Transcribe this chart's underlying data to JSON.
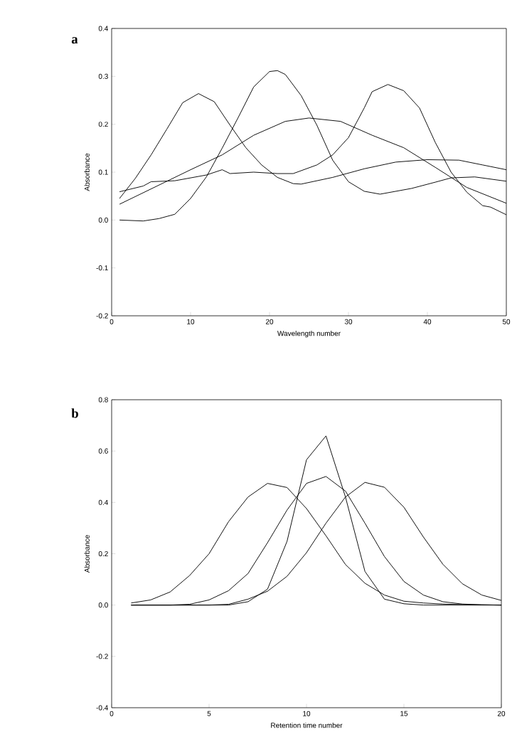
{
  "chart_data": [
    {
      "type": "line",
      "title": "a",
      "xlabel": "Wavelength number",
      "ylabel": "Absorbance",
      "xlim": [
        0,
        50
      ],
      "xticks": [
        0,
        10,
        20,
        30,
        40,
        50
      ],
      "ylim": [
        -0.2,
        0.4
      ],
      "yticks": [
        {
          "value": -0.2,
          "label": "-0.2"
        },
        {
          "value": -0.1,
          "label": "-0.1"
        },
        {
          "value": 0,
          "label": "0.0"
        },
        0.1,
        0.2,
        0.3,
        0.4
      ],
      "grid": false,
      "marker": "none",
      "line_style": "solid",
      "series": [
        {
          "color": "#000000",
          "x": [
            1,
            3,
            5,
            7,
            9,
            11,
            13,
            15,
            17,
            19,
            21,
            23,
            24,
            28,
            32,
            36,
            40,
            44,
            47,
            50
          ],
          "values": [
            0.045,
            0.087,
            0.136,
            0.19,
            0.245,
            0.264,
            0.247,
            0.198,
            0.151,
            0.115,
            0.089,
            0.076,
            0.075,
            0.089,
            0.107,
            0.121,
            0.126,
            0.125,
            0.115,
            0.105
          ]
        },
        {
          "color": "#000000",
          "x": [
            1,
            4,
            6,
            8,
            10,
            12,
            14,
            16,
            18,
            20,
            21,
            22,
            24,
            26,
            28,
            30,
            32,
            34,
            38,
            41,
            43,
            46,
            50
          ],
          "values": [
            0.0,
            -0.002,
            0.003,
            0.012,
            0.045,
            0.09,
            0.15,
            0.213,
            0.278,
            0.31,
            0.312,
            0.304,
            0.26,
            0.198,
            0.125,
            0.08,
            0.06,
            0.054,
            0.066,
            0.079,
            0.088,
            0.09,
            0.081
          ]
        },
        {
          "color": "#000000",
          "x": [
            1,
            10,
            14,
            18,
            22,
            25,
            29,
            33,
            37,
            41,
            45,
            50
          ],
          "values": [
            0.033,
            0.105,
            0.136,
            0.177,
            0.206,
            0.213,
            0.206,
            0.177,
            0.151,
            0.11,
            0.068,
            0.035
          ]
        },
        {
          "color": "#000000",
          "x": [
            1,
            4,
            5,
            8,
            12,
            14,
            15,
            18,
            21,
            23,
            26,
            28,
            30,
            32,
            33,
            35,
            37,
            39,
            41,
            43,
            45,
            47,
            48,
            50
          ],
          "values": [
            0.059,
            0.071,
            0.08,
            0.082,
            0.094,
            0.105,
            0.097,
            0.1,
            0.097,
            0.097,
            0.115,
            0.136,
            0.172,
            0.234,
            0.268,
            0.283,
            0.27,
            0.234,
            0.162,
            0.1,
            0.058,
            0.03,
            0.027,
            0.011
          ]
        }
      ]
    },
    {
      "type": "line",
      "title": "b",
      "xlabel": "Retention time number",
      "ylabel": "Absorbance",
      "xlim": [
        0,
        20
      ],
      "xticks": [
        0,
        5,
        10,
        15,
        20
      ],
      "ylim": [
        -0.4,
        0.8
      ],
      "yticks": [
        {
          "value": -0.4,
          "label": "-0.4"
        },
        {
          "value": -0.2,
          "label": "-0.2"
        },
        {
          "value": 0,
          "label": "0.0"
        },
        0.2,
        0.4,
        0.6,
        0.8
      ],
      "grid": false,
      "marker": "none",
      "line_style": "solid",
      "x": [
        1,
        2,
        3,
        4,
        5,
        6,
        7,
        8,
        9,
        10,
        11,
        12,
        13,
        14,
        15,
        16,
        17,
        18,
        19,
        20
      ],
      "series": [
        {
          "color": "#000000",
          "values": [
            0.008,
            0.02,
            0.051,
            0.115,
            0.2,
            0.325,
            0.421,
            0.474,
            0.458,
            0.376,
            0.27,
            0.158,
            0.085,
            0.039,
            0.015,
            0.008,
            0.004,
            0.002,
            0.001,
            0.0
          ]
        },
        {
          "color": "#000000",
          "values": [
            0.0,
            0.0,
            0.0,
            0.003,
            0.02,
            0.056,
            0.123,
            0.243,
            0.37,
            0.474,
            0.501,
            0.444,
            0.319,
            0.189,
            0.092,
            0.039,
            0.013,
            0.004,
            0.001,
            0.0
          ]
        },
        {
          "color": "#000000",
          "values": [
            0.0,
            0.0,
            0.0,
            0.0,
            0.0,
            0.0,
            0.013,
            0.062,
            0.248,
            0.566,
            0.659,
            0.421,
            0.131,
            0.023,
            0.005,
            0.0,
            0.0,
            0.0,
            0.0,
            0.0
          ]
        },
        {
          "color": "#000000",
          "values": [
            0.0,
            0.0,
            0.0,
            0.0,
            0.0,
            0.003,
            0.023,
            0.054,
            0.112,
            0.204,
            0.319,
            0.421,
            0.478,
            0.459,
            0.381,
            0.265,
            0.159,
            0.083,
            0.039,
            0.018
          ]
        }
      ]
    }
  ]
}
